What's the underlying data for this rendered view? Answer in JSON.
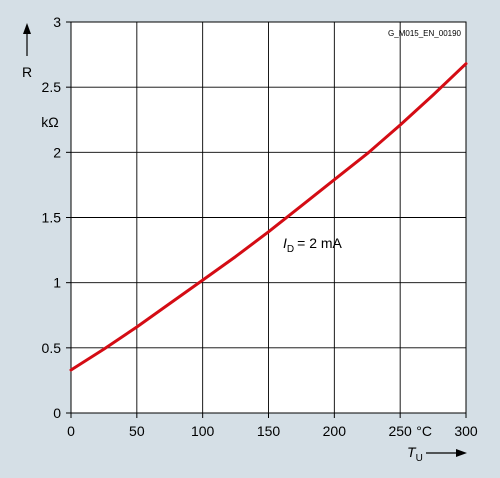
{
  "chart_data": {
    "type": "line",
    "figure_id": "G_M015_EN_00190",
    "xlabel": "T",
    "xlabel_subscript": "U",
    "xunit": "°C",
    "ylabel": "R",
    "yunit": "kΩ",
    "xlim": [
      0,
      300
    ],
    "ylim": [
      0,
      3
    ],
    "x_ticks": [
      0,
      50,
      100,
      150,
      200,
      250,
      300
    ],
    "y_ticks": [
      0,
      0.5,
      1,
      1.5,
      2,
      2.5,
      3
    ],
    "y_tick_labels": [
      "0",
      "0.5",
      "1",
      "1.5",
      "2",
      "2.5",
      "3"
    ],
    "grid": true,
    "annotation": {
      "var": "I",
      "sub": "D",
      "value": "= 2 mA"
    },
    "series": [
      {
        "color": "#d40c14",
        "x": [
          0,
          25,
          50,
          75,
          100,
          125,
          150,
          175,
          200,
          225,
          250,
          275,
          300
        ],
        "y": [
          0.33,
          0.49,
          0.66,
          0.84,
          1.02,
          1.2,
          1.39,
          1.59,
          1.79,
          1.99,
          2.21,
          2.44,
          2.68
        ]
      }
    ]
  }
}
